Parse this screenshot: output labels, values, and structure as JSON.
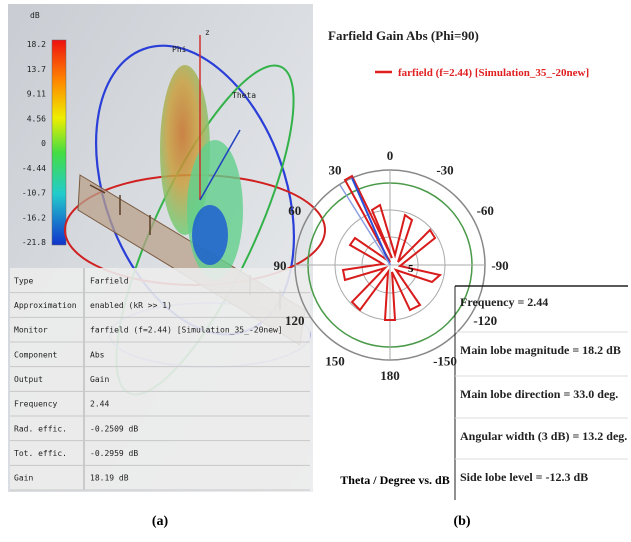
{
  "panel_a": {
    "colorbar": {
      "unit": "dB",
      "labels": [
        "18.2",
        "13.7",
        "9.11",
        "4.56",
        "0",
        "-4.44",
        "-10.7",
        "-16.2",
        "-21.8"
      ]
    },
    "axes": {
      "phi": "Phi",
      "theta": "Theta",
      "z": "z"
    },
    "properties": [
      [
        "Type",
        "Farfield"
      ],
      [
        "Approximation",
        "enabled (kR >> 1)"
      ],
      [
        "Monitor",
        "farfield (f=2.44) [Simulation_35_-20new]"
      ],
      [
        "Component",
        "Abs"
      ],
      [
        "Output",
        "Gain"
      ],
      [
        "Frequency",
        "2.44"
      ],
      [
        "Rad. effic.",
        "-0.2509 dB"
      ],
      [
        "Tot. effic.",
        "-0.2959 dB"
      ],
      [
        "Gain",
        "18.19 dB"
      ]
    ],
    "caption": "(a)"
  },
  "panel_b": {
    "title": "Farfield Gain Abs (Phi=90)",
    "legend": "farfield (f=2.44) [Simulation_35_-20new]",
    "angle_labels": [
      0,
      -30,
      -60,
      -90,
      -120,
      -150,
      180,
      150,
      120,
      90,
      60,
      30
    ],
    "radial_label": "5",
    "info": [
      "Frequency = 2.44",
      "Main lobe magnitude =   18.2 dB",
      "Main lobe direction = 33.0 deg.",
      "Angular width (3 dB) = 13.2 deg.",
      "Side lobe level = -12.3 dB"
    ],
    "axis_label": "Theta / Degree vs. dB",
    "caption": "(b)"
  }
}
